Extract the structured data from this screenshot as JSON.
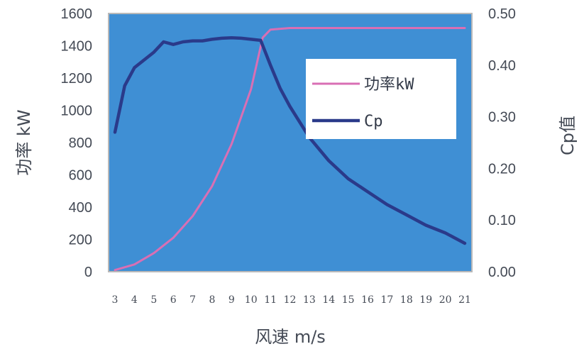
{
  "chart_data": {
    "type": "line",
    "xlabel": "风速 m/s",
    "ylabel_left": "功率 kW",
    "ylabel_right": "Cp值",
    "x_ticks": [
      3,
      4,
      5,
      6,
      7,
      8,
      9,
      10,
      11,
      12,
      13,
      14,
      15,
      16,
      17,
      18,
      19,
      20,
      21
    ],
    "ylim_left": [
      0,
      1600
    ],
    "ylim_right": [
      0,
      0.5
    ],
    "y_ticks_left": [
      "0",
      "200",
      "400",
      "600",
      "800",
      "1000",
      "1200",
      "1400",
      "1600"
    ],
    "y_ticks_right": [
      "0.00",
      "0.10",
      "0.20",
      "0.30",
      "0.40",
      "0.50"
    ],
    "grid": false,
    "legend_position": "upper-right inside plot",
    "plot_background": "#3f8fd4",
    "series": [
      {
        "name": "功率kW",
        "color": "#d96fb4",
        "axis": "left",
        "x": [
          3,
          4,
          5,
          6,
          7,
          8,
          9,
          10,
          10.6,
          11,
          12,
          13,
          14,
          15,
          16,
          17,
          18,
          19,
          20,
          21
        ],
        "values": [
          10,
          45,
          115,
          210,
          345,
          530,
          790,
          1130,
          1450,
          1500,
          1510,
          1510,
          1510,
          1510,
          1510,
          1510,
          1510,
          1510,
          1510,
          1510
        ]
      },
      {
        "name": "Cp",
        "color": "#2a3a8a",
        "axis": "right",
        "x": [
          3,
          3.5,
          4,
          4.5,
          5,
          5.5,
          6,
          6.5,
          7,
          7.5,
          8,
          8.5,
          9,
          9.5,
          10,
          10.5,
          11,
          11.5,
          12,
          13,
          14,
          15,
          16,
          17,
          18,
          19,
          20,
          21
        ],
        "values": [
          0.27,
          0.36,
          0.395,
          0.41,
          0.425,
          0.445,
          0.44,
          0.445,
          0.447,
          0.447,
          0.45,
          0.452,
          0.453,
          0.452,
          0.45,
          0.448,
          0.4,
          0.355,
          0.32,
          0.26,
          0.215,
          0.18,
          0.155,
          0.13,
          0.11,
          0.09,
          0.075,
          0.055
        ]
      }
    ]
  }
}
